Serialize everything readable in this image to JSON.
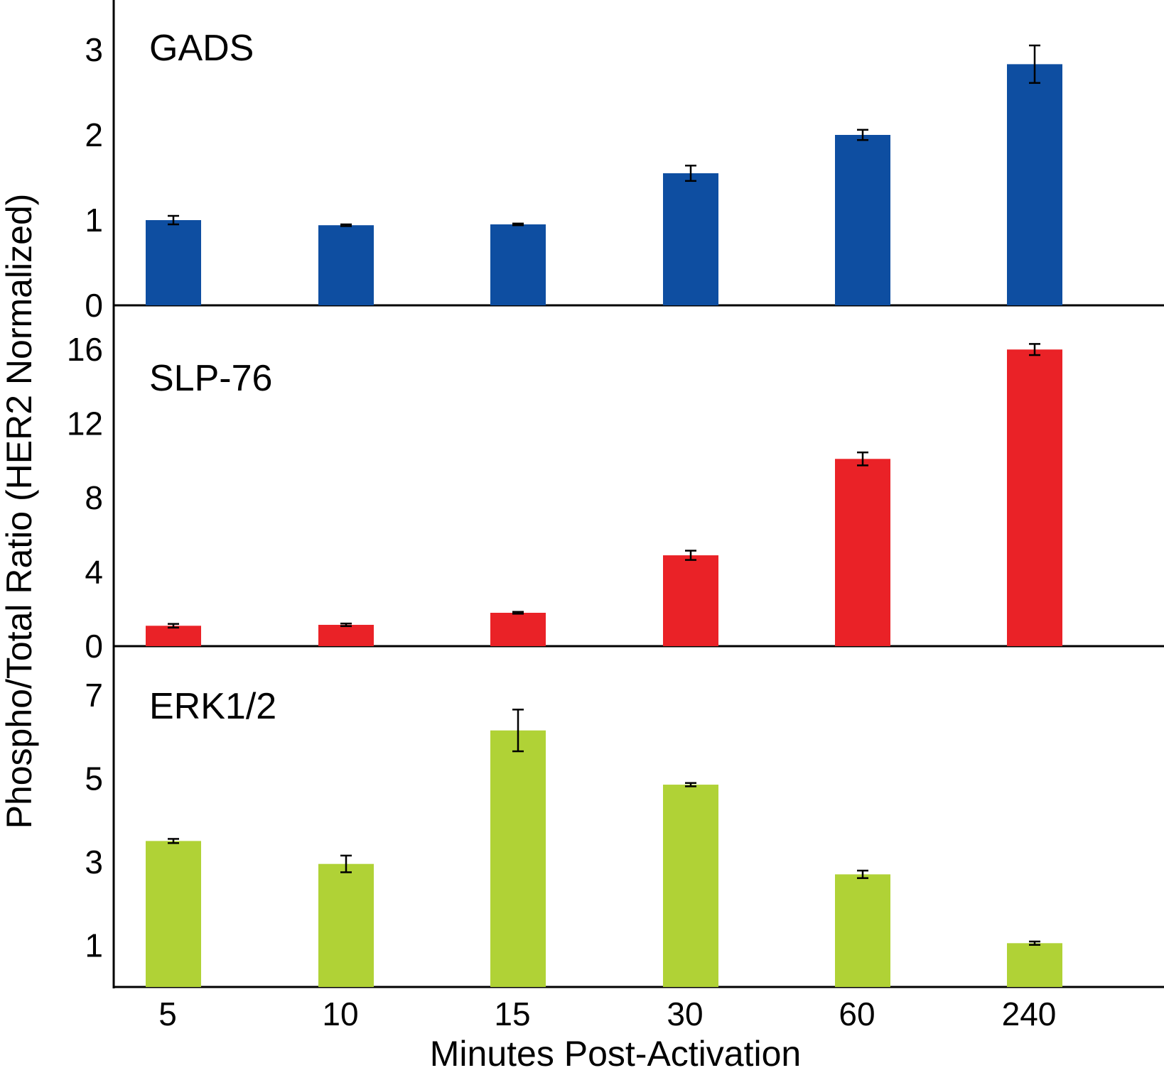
{
  "chart_data": {
    "type": "bar",
    "xlabel": "Minutes Post-Activation",
    "ylabel": "Phospho/Total Ratio (HER2 Normalized)",
    "categories": [
      "5",
      "10",
      "15",
      "30",
      "60",
      "240"
    ],
    "panels": [
      {
        "name": "GADS",
        "color": "#0e4ea1",
        "yticks": [
          "0",
          "1",
          "2",
          "3"
        ],
        "ylim": [
          0,
          3.5
        ],
        "values": [
          1.0,
          0.94,
          0.95,
          1.55,
          2.0,
          2.83
        ],
        "errors": [
          0.05,
          0.01,
          0.01,
          0.09,
          0.06,
          0.22
        ]
      },
      {
        "name": "SLP-76",
        "color": "#ea2227",
        "yticks": [
          "0",
          "4",
          "8",
          "12",
          "16"
        ],
        "ylim": [
          0,
          18
        ],
        "values": [
          1.1,
          1.15,
          1.8,
          4.9,
          10.1,
          16.0
        ],
        "errors": [
          0.1,
          0.07,
          0.05,
          0.25,
          0.35,
          0.3
        ]
      },
      {
        "name": "ERK1/2",
        "color": "#b0d236",
        "yticks": [
          "1",
          "3",
          "5",
          "7"
        ],
        "ylim": [
          0,
          8
        ],
        "values": [
          3.5,
          2.95,
          6.15,
          4.85,
          2.7,
          1.05
        ],
        "errors": [
          0.05,
          0.2,
          0.5,
          0.04,
          0.09,
          0.04
        ]
      }
    ]
  }
}
